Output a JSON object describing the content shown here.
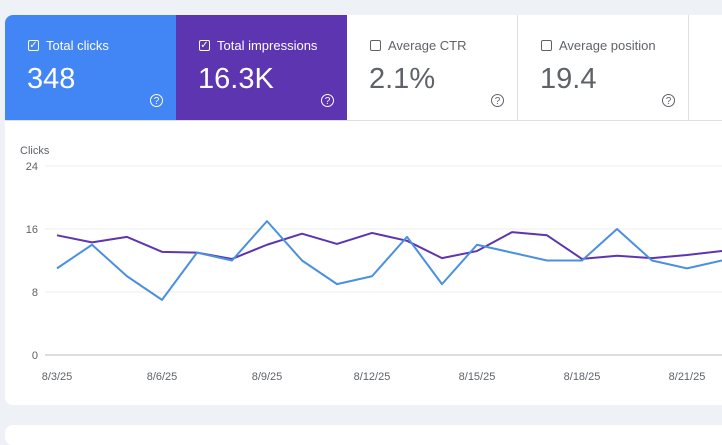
{
  "cards": [
    {
      "label": "Total clicks",
      "value": "348",
      "checked": true,
      "color": "#4285f4"
    },
    {
      "label": "Total impressions",
      "value": "16.3K",
      "checked": true,
      "color": "#5e35b1"
    },
    {
      "label": "Average CTR",
      "value": "2.1%",
      "checked": false,
      "color": "#ffffff"
    },
    {
      "label": "Average position",
      "value": "19.4",
      "checked": false,
      "color": "#ffffff"
    }
  ],
  "chart_data": {
    "type": "line",
    "ylabel": "Clicks",
    "ylim": [
      0,
      24
    ],
    "yticks": [
      "0",
      "8",
      "16",
      "24"
    ],
    "x": [
      "8/3/25",
      "8/4/25",
      "8/5/25",
      "8/6/25",
      "8/7/25",
      "8/8/25",
      "8/9/25",
      "8/10/25",
      "8/11/25",
      "8/12/25",
      "8/13/25",
      "8/14/25",
      "8/15/25",
      "8/16/25",
      "8/17/25",
      "8/18/25",
      "8/19/25",
      "8/20/25",
      "8/21/25",
      "8/22/25"
    ],
    "xticks": [
      "8/3/25",
      "8/6/25",
      "8/9/25",
      "8/12/25",
      "8/15/25",
      "8/18/25",
      "8/21/25"
    ],
    "grid": true,
    "series": [
      {
        "metric": "clicks",
        "color": "#4a90e2",
        "values": [
          11,
          14,
          10,
          7,
          13,
          12,
          17,
          12,
          9,
          10,
          15,
          9,
          14,
          13,
          12,
          12,
          16,
          12,
          11,
          12
        ]
      },
      {
        "metric": "impressions",
        "color": "#5e35b1",
        "values": [
          15.2,
          14.3,
          15,
          13.1,
          13,
          12.2,
          14,
          15.4,
          14.1,
          15.5,
          14.5,
          12.3,
          13.2,
          15.6,
          15.2,
          12.2,
          12.6,
          12.3,
          12.7,
          13.2
        ]
      }
    ]
  }
}
